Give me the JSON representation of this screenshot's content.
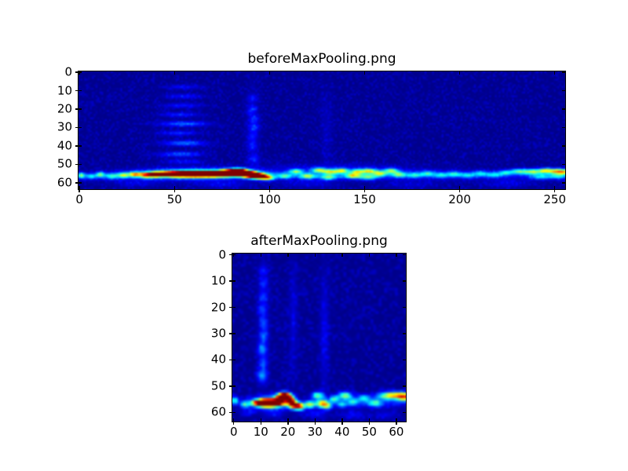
{
  "figure": {
    "background": "#ffffff",
    "text_color": "#000000",
    "axis_color": "#000000"
  },
  "chart_data": [
    {
      "type": "heatmap",
      "title": "beforeMaxPooling.png",
      "colormap": "jet",
      "x_range": [
        -0.5,
        255.5
      ],
      "y_range": [
        -0.5,
        63.5
      ],
      "xticks": [
        0,
        50,
        100,
        150,
        200,
        250
      ],
      "yticks": [
        0,
        10,
        20,
        30,
        40,
        50,
        60
      ],
      "grid": {
        "cols": 256,
        "rows": 64
      },
      "base_value": 0.012,
      "noise_amp": 0.06,
      "noise_seed": 1337,
      "features": [
        [
          55,
          8,
          7,
          0.9,
          0.09
        ],
        [
          55,
          13,
          7,
          0.9,
          0.11
        ],
        [
          54,
          18,
          7,
          0.9,
          0.12
        ],
        [
          53,
          23,
          7,
          0.9,
          0.13
        ],
        [
          55,
          28,
          9,
          1.0,
          0.2
        ],
        [
          52,
          33,
          7,
          0.9,
          0.14
        ],
        [
          55,
          38.5,
          8,
          1.0,
          0.21
        ],
        [
          53,
          44.5,
          8,
          1.0,
          0.18
        ],
        [
          55,
          48.5,
          7,
          0.9,
          0.1
        ],
        [
          91,
          14,
          1.8,
          1.5,
          0.09
        ],
        [
          91,
          20,
          1.8,
          1.5,
          0.11
        ],
        [
          92,
          25,
          1.8,
          1.5,
          0.1
        ],
        [
          92,
          30,
          1.8,
          1.8,
          0.12
        ],
        [
          91,
          35,
          1.8,
          1.5,
          0.09
        ],
        [
          91,
          40,
          1.8,
          1.8,
          0.1
        ],
        [
          92,
          47,
          2.0,
          1.8,
          0.12
        ],
        [
          91,
          30,
          2.2,
          14,
          0.05
        ],
        [
          130,
          32,
          2.0,
          14,
          0.04
        ],
        [
          1,
          56,
          1.2,
          1.1,
          0.42
        ],
        [
          6,
          56.5,
          2,
          1,
          0.25
        ],
        [
          11,
          55.5,
          1.5,
          1,
          0.38
        ],
        [
          17,
          56.5,
          2,
          1,
          0.25
        ],
        [
          23,
          56,
          2,
          1,
          0.3
        ],
        [
          29,
          55.5,
          1.8,
          1,
          0.33
        ],
        [
          35,
          56.5,
          2,
          1,
          0.28
        ],
        [
          40,
          56,
          2,
          1,
          0.3
        ],
        [
          20,
          56.5,
          18,
          1.4,
          0.15
        ],
        [
          62,
          55.3,
          20,
          2.2,
          0.28
        ],
        [
          62,
          55.2,
          16,
          1.3,
          0.7
        ],
        [
          61,
          55.3,
          16,
          0.8,
          1.5
        ],
        [
          80,
          54.2,
          4,
          1.0,
          1.05
        ],
        [
          84,
          53.8,
          3,
          1,
          0.9
        ],
        [
          89,
          55.3,
          3,
          1.1,
          0.95
        ],
        [
          93,
          56.4,
          3,
          1.0,
          0.9
        ],
        [
          97,
          57,
          2.5,
          1,
          0.55
        ],
        [
          100,
          57.5,
          2,
          0.9,
          0.35
        ],
        [
          108,
          56.5,
          3,
          1.0,
          0.32
        ],
        [
          114,
          53.8,
          2.5,
          0.9,
          0.4
        ],
        [
          120,
          56.5,
          3,
          1.0,
          0.42
        ],
        [
          126,
          53.2,
          2.5,
          0.9,
          0.48
        ],
        [
          132,
          54,
          2.5,
          0.9,
          0.45
        ],
        [
          131,
          57,
          3,
          1.0,
          0.38
        ],
        [
          138,
          53.5,
          2.5,
          0.9,
          0.5
        ],
        [
          144,
          56.3,
          3,
          1.0,
          0.45
        ],
        [
          146,
          54,
          2.2,
          0.9,
          0.42
        ],
        [
          152,
          53.6,
          2.8,
          0.9,
          0.5
        ],
        [
          152,
          57,
          3,
          1,
          0.35
        ],
        [
          158,
          55,
          2.5,
          1,
          0.42
        ],
        [
          164,
          53.4,
          2.5,
          0.9,
          0.45
        ],
        [
          168,
          55.5,
          2.5,
          1,
          0.35
        ],
        [
          135,
          55.3,
          32,
          1.8,
          0.15
        ],
        [
          135,
          51.5,
          25,
          1.5,
          0.06
        ],
        [
          205,
          55.8,
          40,
          1.6,
          0.13
        ],
        [
          176,
          56,
          2.5,
          1,
          0.24
        ],
        [
          183,
          55,
          2.5,
          1,
          0.26
        ],
        [
          190,
          56,
          2.5,
          1,
          0.22
        ],
        [
          197,
          55.3,
          2.5,
          1,
          0.26
        ],
        [
          204,
          56,
          2.5,
          1,
          0.22
        ],
        [
          211,
          55,
          2.5,
          1,
          0.25
        ],
        [
          218,
          55.7,
          2.5,
          1,
          0.24
        ],
        [
          224,
          54.5,
          2.5,
          1,
          0.28
        ],
        [
          231,
          53.8,
          3,
          1,
          0.38
        ],
        [
          238,
          54,
          3,
          1,
          0.45
        ],
        [
          245,
          53.5,
          3,
          1,
          0.5
        ],
        [
          251,
          53.8,
          3,
          1,
          0.52
        ],
        [
          255,
          54.2,
          2.5,
          1,
          0.45
        ],
        [
          243,
          56.8,
          4,
          1,
          0.28
        ],
        [
          252,
          56.5,
          3,
          1,
          0.3
        ],
        [
          30,
          60.5,
          8,
          1.2,
          0.07
        ],
        [
          75,
          61,
          9,
          1.3,
          0.08
        ],
        [
          120,
          60.5,
          10,
          1.5,
          0.07
        ],
        [
          175,
          61,
          10,
          1.5,
          0.06
        ],
        [
          225,
          60.5,
          9,
          1.4,
          0.07
        ]
      ]
    },
    {
      "type": "heatmap",
      "title": "afterMaxPooling.png",
      "colormap": "jet",
      "x_range": [
        -0.5,
        63.5
      ],
      "y_range": [
        -0.5,
        63.5
      ],
      "xticks": [
        0,
        10,
        20,
        30,
        40,
        50,
        60
      ],
      "yticks": [
        0,
        10,
        20,
        30,
        40,
        50,
        60
      ],
      "grid": {
        "cols": 64,
        "rows": 64
      },
      "base_value": 0.012,
      "noise_amp": 0.06,
      "noise_seed": 4242,
      "features": [
        [
          11,
          6,
          1.1,
          1.4,
          0.1
        ],
        [
          11,
          11,
          1.1,
          1.4,
          0.12
        ],
        [
          11,
          16,
          1.1,
          1.4,
          0.13
        ],
        [
          10.5,
          21,
          1.1,
          1.4,
          0.13
        ],
        [
          11,
          26,
          1.1,
          1.4,
          0.14
        ],
        [
          11,
          31,
          1.1,
          1.4,
          0.16
        ],
        [
          10.5,
          36,
          1.2,
          1.6,
          0.22
        ],
        [
          11,
          41,
          1.1,
          1.4,
          0.15
        ],
        [
          10.5,
          46,
          1.3,
          1.8,
          0.24
        ],
        [
          11,
          26,
          1.4,
          16,
          0.06
        ],
        [
          22,
          24,
          1.0,
          14,
          0.07
        ],
        [
          33.5,
          30,
          1.1,
          16,
          0.08
        ],
        [
          0.5,
          55.5,
          0.9,
          1.0,
          0.42
        ],
        [
          4,
          57,
          1.1,
          0.9,
          0.33
        ],
        [
          13,
          56.4,
          4.5,
          1.6,
          0.42
        ],
        [
          13,
          56.4,
          3.4,
          1.0,
          0.8
        ],
        [
          12.5,
          56.4,
          2.8,
          0.7,
          1.5
        ],
        [
          17.5,
          54.5,
          1.6,
          1.0,
          0.95
        ],
        [
          19,
          53.6,
          1.4,
          0.85,
          1.0
        ],
        [
          21,
          55.3,
          1.2,
          1.0,
          0.9
        ],
        [
          22.5,
          57.3,
          1.6,
          0.95,
          0.9
        ],
        [
          24.5,
          58,
          1.2,
          0.9,
          0.5
        ],
        [
          28,
          57,
          1.4,
          0.95,
          0.55
        ],
        [
          31,
          53.6,
          1.5,
          0.9,
          0.48
        ],
        [
          32.5,
          56.6,
          1.6,
          1.0,
          0.62
        ],
        [
          34.5,
          57.6,
          1.3,
          0.9,
          0.42
        ],
        [
          37,
          55,
          1.2,
          0.9,
          0.4
        ],
        [
          41,
          53.6,
          1.7,
          0.95,
          0.5
        ],
        [
          40,
          57,
          1.5,
          0.9,
          0.28
        ],
        [
          44,
          56,
          1.3,
          0.9,
          0.3
        ],
        [
          52,
          56,
          9,
          1.5,
          0.16
        ],
        [
          48,
          54.5,
          1.5,
          0.9,
          0.3
        ],
        [
          52,
          56.5,
          1.5,
          0.9,
          0.3
        ],
        [
          57,
          53.6,
          2.6,
          0.95,
          0.5
        ],
        [
          61.5,
          53.6,
          2.2,
          0.95,
          0.55
        ],
        [
          63,
          54.5,
          1.5,
          1,
          0.4
        ],
        [
          5,
          60,
          2,
          1,
          0.08
        ],
        [
          15,
          60.5,
          2.5,
          1,
          0.1
        ],
        [
          30,
          60.5,
          2.5,
          1,
          0.12
        ],
        [
          44,
          61,
          3,
          1,
          0.1
        ],
        [
          56,
          61,
          3,
          1,
          0.08
        ]
      ]
    }
  ]
}
